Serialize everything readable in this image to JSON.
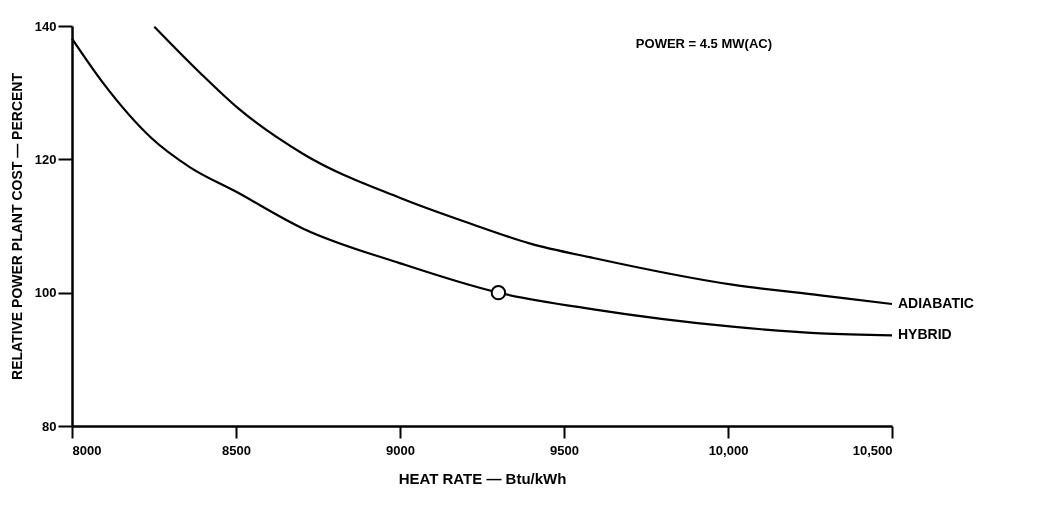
{
  "chart_data": {
    "type": "line",
    "xlabel": "HEAT RATE — Btu/kWh",
    "ylabel": "RELATIVE POWER PLANT COST — PERCENT",
    "annotations": [
      "POWER = 4.5 MW(AC)"
    ],
    "xlim": [
      8000,
      10500
    ],
    "xticks": [
      8000,
      8500,
      9000,
      9500,
      {
        "value": 10000,
        "label": "10,000"
      },
      {
        "value": 10500,
        "label": "10,500"
      }
    ],
    "ylim": [
      80,
      140
    ],
    "yticks": [
      80,
      100,
      120,
      140
    ],
    "grid": false,
    "legend": false,
    "line_style": "solid",
    "marker": "none",
    "series": [
      {
        "name": "ADIABATIC",
        "color": "#000000",
        "x": [
          8251,
          8390,
          8508,
          8705,
          9001,
          9218,
          9395,
          9590,
          10013,
          10282,
          10500
        ],
        "values": [
          139.9,
          133.0,
          127.6,
          120.8,
          114.2,
          110.3,
          107.4,
          105.2,
          101.2,
          99.6,
          98.3
        ]
      },
      {
        "name": "HYBRID",
        "color": "#000000",
        "x": [
          8000,
          8094,
          8242,
          8360,
          8498,
          8705,
          9001,
          9300,
          9590,
          10013,
          10282,
          10500
        ],
        "values": [
          138.1,
          131.5,
          123.2,
          118.8,
          115.2,
          109.6,
          104.4,
          100.0,
          97.5,
          94.9,
          93.9,
          93.6
        ]
      },
      {
        "type": "scatter",
        "marker": "circle",
        "color": "#000000",
        "x": [
          9300
        ],
        "values": [
          100
        ]
      }
    ]
  }
}
